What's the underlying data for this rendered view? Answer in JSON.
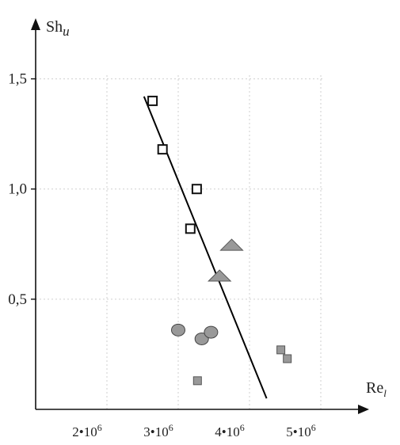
{
  "chart_data": {
    "type": "scatter",
    "title": "",
    "xlabel": {
      "main": "Re",
      "sub": "l"
    },
    "ylabel": {
      "main": "Sh",
      "sub": "u"
    },
    "xlim": [
      1000000,
      5500000
    ],
    "ylim": [
      0,
      1.75
    ],
    "x_ticks": [
      {
        "value": 2000000,
        "mantissa": "2•10",
        "exp": "6"
      },
      {
        "value": 3000000,
        "mantissa": "3•10",
        "exp": "6"
      },
      {
        "value": 4000000,
        "mantissa": "4•10",
        "exp": "6"
      },
      {
        "value": 5000000,
        "mantissa": "5•10",
        "exp": "6"
      }
    ],
    "y_ticks": [
      {
        "value": 0.5,
        "label": "0,5"
      },
      {
        "value": 1.0,
        "label": "1,0"
      },
      {
        "value": 1.5,
        "label": "1,5"
      }
    ],
    "grid": true,
    "legend": "none",
    "series": [
      {
        "marker": "open-square",
        "color": "#111111",
        "points": [
          {
            "x": 2640000,
            "y": 1.4
          },
          {
            "x": 2780000,
            "y": 1.18
          },
          {
            "x": 3260000,
            "y": 1.0
          },
          {
            "x": 3170000,
            "y": 0.82
          }
        ]
      },
      {
        "marker": "filled-triangle",
        "color": "#999999",
        "points": [
          {
            "x": 3750000,
            "y": 0.74
          },
          {
            "x": 3580000,
            "y": 0.6
          }
        ]
      },
      {
        "marker": "filled-circle",
        "color": "#999999",
        "points": [
          {
            "x": 3000000,
            "y": 0.36
          },
          {
            "x": 3330000,
            "y": 0.32
          },
          {
            "x": 3460000,
            "y": 0.35
          }
        ]
      },
      {
        "marker": "filled-square",
        "color": "#999999",
        "points": [
          {
            "x": 4440000,
            "y": 0.27
          },
          {
            "x": 4530000,
            "y": 0.23
          },
          {
            "x": 3270000,
            "y": 0.13
          }
        ]
      }
    ],
    "trend_line": {
      "color": "#000000",
      "points": [
        {
          "x": 2520000,
          "y": 1.42
        },
        {
          "x": 4240000,
          "y": 0.05
        }
      ]
    }
  }
}
